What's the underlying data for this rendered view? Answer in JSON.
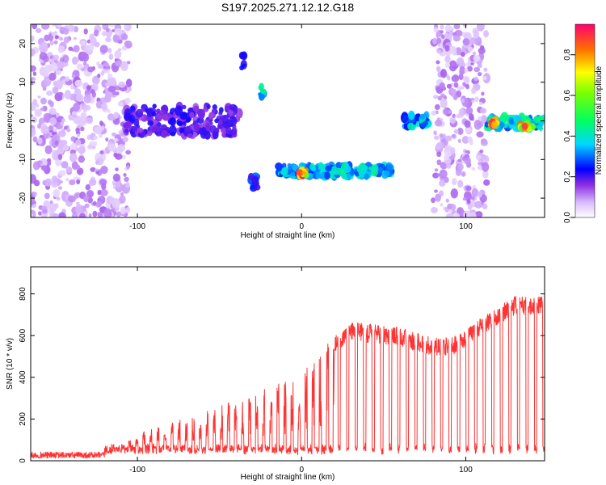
{
  "title": "S197.2025.271.12.12.G18",
  "chart_data": [
    {
      "type": "heatmap",
      "xlabel": "Height of straight line (km)",
      "ylabel": "Frequency (Hz)",
      "xlim": [
        -165,
        148
      ],
      "ylim": [
        -25,
        25
      ],
      "xticks": [
        -100,
        0,
        100
      ],
      "yticks": [
        -20,
        -10,
        0,
        10,
        20
      ],
      "colorbar": {
        "label": "Normalized spectral amplitude",
        "range": [
          0,
          0.95
        ],
        "ticks": [
          0.0,
          0.2,
          0.4,
          0.6,
          0.8
        ]
      },
      "features": [
        {
          "name": "noise-band-left",
          "x": [
            -165,
            -105
          ],
          "f_center": 0,
          "f_spread": 25,
          "amplitude": 0.12
        },
        {
          "name": "signal-segment-1",
          "x": [
            -107,
            -38
          ],
          "f_center": 0,
          "f_spread": 4,
          "amplitude": 0.22
        },
        {
          "name": "blob-a",
          "x": [
            -37,
            -35
          ],
          "f_center": 15,
          "f_spread": 2,
          "amplitude": 0.3
        },
        {
          "name": "blob-b",
          "x": [
            -26,
            -23
          ],
          "f_center": 7.5,
          "f_spread": 1.5,
          "amplitude": 0.5
        },
        {
          "name": "blob-c",
          "x": [
            -31,
            -27
          ],
          "f_center": -15.5,
          "f_spread": 2,
          "amplitude": 0.3
        },
        {
          "name": "signal-segment-2",
          "x": [
            -15,
            55
          ],
          "f_center": -13,
          "f_spread": 1.5,
          "amplitude": 0.42
        },
        {
          "name": "peak-1",
          "x": [
            -2,
            3
          ],
          "f_center": -13.5,
          "f_spread": 0.8,
          "amplitude": 0.95
        },
        {
          "name": "signal-segment-3",
          "x": [
            62,
            78
          ],
          "f_center": 0,
          "f_spread": 1.5,
          "amplitude": 0.4
        },
        {
          "name": "noise-band-mid",
          "x": [
            80,
            113
          ],
          "f_center": 0,
          "f_spread": 25,
          "amplitude": 0.12
        },
        {
          "name": "signal-segment-4",
          "x": [
            113,
            148
          ],
          "f_center": -0.5,
          "f_spread": 1.5,
          "amplitude": 0.45
        },
        {
          "name": "peak-2",
          "x": [
            115,
            119
          ],
          "f_center": -0.5,
          "f_spread": 0.6,
          "amplitude": 0.9
        },
        {
          "name": "peak-3",
          "x": [
            133,
            141
          ],
          "f_center": -1.5,
          "f_spread": 0.6,
          "amplitude": 0.85
        }
      ]
    },
    {
      "type": "line",
      "xlabel": "Height of straight line (km)",
      "ylabel": "SNR (10 * v/v)",
      "xlim": [
        -165,
        148
      ],
      "ylim": [
        0,
        930
      ],
      "xticks": [
        -100,
        0,
        100
      ],
      "yticks": [
        0,
        200,
        400,
        600,
        800
      ],
      "color": "#ff3333",
      "series": [
        {
          "name": "SNR",
          "envelope": [
            {
              "x": -165,
              "y": 30
            },
            {
              "x": -120,
              "y": 30
            },
            {
              "x": -100,
              "y": 130
            },
            {
              "x": -80,
              "y": 180
            },
            {
              "x": -60,
              "y": 240
            },
            {
              "x": -40,
              "y": 290
            },
            {
              "x": -20,
              "y": 350
            },
            {
              "x": 0,
              "y": 420
            },
            {
              "x": 20,
              "y": 600
            },
            {
              "x": 30,
              "y": 665
            },
            {
              "x": 60,
              "y": 640
            },
            {
              "x": 75,
              "y": 600
            },
            {
              "x": 90,
              "y": 590
            },
            {
              "x": 100,
              "y": 630
            },
            {
              "x": 115,
              "y": 720
            },
            {
              "x": 130,
              "y": 790
            },
            {
              "x": 148,
              "y": 790
            }
          ]
        }
      ]
    }
  ]
}
